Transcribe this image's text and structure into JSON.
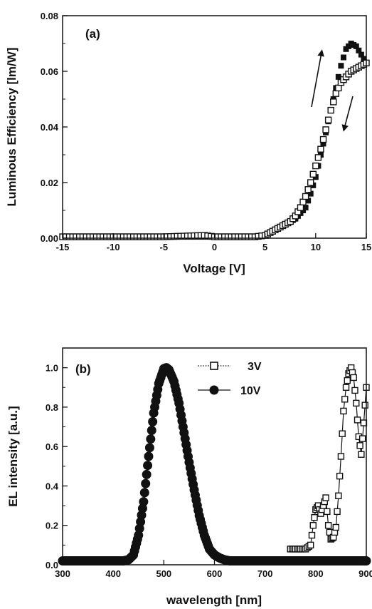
{
  "chart_data": [
    {
      "type": "scatter",
      "panel_label": "(a)",
      "xlabel": "Voltage [V]",
      "ylabel": "Luminous Efficiency [lm/W]",
      "xlim": [
        -15,
        15
      ],
      "ylim": [
        0,
        0.08
      ],
      "xticks": [
        "-15",
        "-10",
        "-5",
        "0",
        "5",
        "10",
        "15"
      ],
      "yticks": [
        "0.00",
        "0.02",
        "0.04",
        "0.06",
        "0.08"
      ],
      "annotations": [
        "arrow up (forward sweep)",
        "arrow down (reverse sweep)"
      ],
      "series": [
        {
          "marker": "filled-square",
          "x": [
            -15,
            -10,
            -5,
            0,
            4,
            5,
            5.5,
            6,
            6.5,
            7,
            7.5,
            8,
            8.5,
            9,
            9.5,
            10,
            10.5,
            11,
            11.5,
            12,
            12.5,
            13,
            13.5,
            14,
            14.5,
            15
          ],
          "y": [
            0.0005,
            0.0005,
            0.0005,
            0.0005,
            0.0005,
            0.001,
            0.002,
            0.003,
            0.004,
            0.005,
            0.006,
            0.007,
            0.009,
            0.011,
            0.016,
            0.022,
            0.03,
            0.038,
            0.046,
            0.054,
            0.062,
            0.068,
            0.07,
            0.069,
            0.066,
            0.063
          ]
        },
        {
          "marker": "open-square",
          "x": [
            -15,
            -10,
            -5,
            -1,
            0,
            4,
            5,
            5.5,
            6,
            6.5,
            7,
            7.5,
            8,
            8.5,
            9,
            9.5,
            10,
            10.5,
            11,
            11.5,
            12,
            12.5,
            13,
            13.5,
            14,
            14.5,
            15
          ],
          "y": [
            0.0005,
            0.0005,
            0.0005,
            0.001,
            0.0005,
            0.0005,
            0.001,
            0.002,
            0.003,
            0.004,
            0.005,
            0.006,
            0.008,
            0.011,
            0.015,
            0.02,
            0.026,
            0.032,
            0.039,
            0.046,
            0.052,
            0.056,
            0.058,
            0.06,
            0.061,
            0.062,
            0.063
          ]
        }
      ]
    },
    {
      "type": "line",
      "panel_label": "(b)",
      "xlabel": "wavelength [nm]",
      "ylabel": "EL intensity [a.u.]",
      "xlim": [
        300,
        900
      ],
      "ylim": [
        0,
        1.1
      ],
      "xticks": [
        "300",
        "400",
        "500",
        "600",
        "700",
        "800",
        "900"
      ],
      "yticks": [
        "0.0",
        "0.2",
        "0.4",
        "0.6",
        "0.8",
        "1.0"
      ],
      "legend_position": "top-center",
      "series": [
        {
          "name": "3V",
          "marker": "open-square",
          "x": [
            750,
            760,
            770,
            780,
            790,
            795,
            800,
            805,
            810,
            815,
            820,
            825,
            830,
            835,
            840,
            845,
            850,
            855,
            860,
            865,
            870,
            875,
            880,
            885,
            890,
            895,
            900
          ],
          "y": [
            0.08,
            0.08,
            0.08,
            0.08,
            0.1,
            0.2,
            0.28,
            0.3,
            0.26,
            0.3,
            0.34,
            0.2,
            0.13,
            0.14,
            0.19,
            0.35,
            0.55,
            0.78,
            0.9,
            0.97,
            1.0,
            0.95,
            0.82,
            0.65,
            0.56,
            0.72,
            0.9
          ]
        },
        {
          "name": "10V",
          "marker": "filled-circle",
          "x": [
            300,
            350,
            400,
            420,
            430,
            440,
            450,
            460,
            470,
            480,
            490,
            500,
            505,
            510,
            520,
            530,
            540,
            550,
            560,
            570,
            580,
            590,
            600,
            610,
            620,
            630,
            650,
            700,
            750,
            800,
            850,
            900
          ],
          "y": [
            0.02,
            0.02,
            0.02,
            0.02,
            0.025,
            0.05,
            0.15,
            0.32,
            0.55,
            0.77,
            0.92,
            0.995,
            1.0,
            0.99,
            0.93,
            0.82,
            0.67,
            0.52,
            0.38,
            0.25,
            0.15,
            0.08,
            0.05,
            0.035,
            0.025,
            0.02,
            0.02,
            0.02,
            0.02,
            0.02,
            0.02,
            0.02
          ]
        }
      ]
    }
  ]
}
